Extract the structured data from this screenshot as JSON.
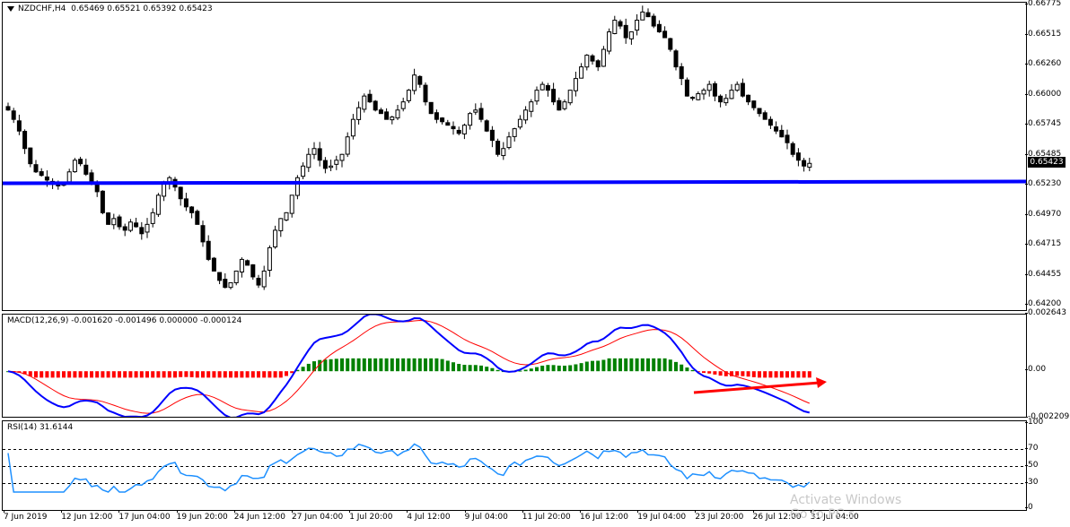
{
  "chart_header": {
    "symbol_label": "NZDCHF,H4",
    "ohlc": "0.65469 0.65521 0.65392 0.65423"
  },
  "price_axis": {
    "ticks": [
      "0.66775",
      "0.66515",
      "0.66260",
      "0.66000",
      "0.65745",
      "0.65485",
      "0.65230",
      "0.64970",
      "0.64715",
      "0.64455",
      "0.64200"
    ],
    "current_price": "0.65423"
  },
  "macd": {
    "label": "MACD(12,26,9) -0.001620 -0.001496 0.000000 -0.000124",
    "axis_ticks": [
      "0.002643",
      "0.00",
      "-0.002209"
    ]
  },
  "rsi": {
    "label": "RSI(14) 31.6144",
    "axis_ticks": [
      "100",
      "70",
      "50",
      "30",
      "0"
    ]
  },
  "time_axis": {
    "labels": [
      "7 Jun 2019",
      "12 Jun 12:00",
      "17 Jun 04:00",
      "19 Jun 20:00",
      "24 Jun 12:00",
      "27 Jun 04:00",
      "1 Jul 20:00",
      "4 Jul 12:00",
      "9 Jul 04:00",
      "11 Jul 20:00",
      "16 Jul 12:00",
      "19 Jul 04:00",
      "23 Jul 20:00",
      "26 Jul 12:00",
      "31 Jul 04:00"
    ]
  },
  "watermark": {
    "line1": "Activate Windows",
    "line2": "Go to PC s"
  },
  "chart_data": [
    {
      "type": "candlestick",
      "title": "NZDCHF,H4",
      "ylim": [
        0.6415,
        0.668
      ],
      "close_path": [
        0.6588,
        0.658,
        0.657,
        0.6555,
        0.6542,
        0.6535,
        0.6532,
        0.6528,
        0.6526,
        0.6523,
        0.6525,
        0.6535,
        0.6545,
        0.6542,
        0.6533,
        0.6525,
        0.6518,
        0.65,
        0.649,
        0.6495,
        0.6488,
        0.6485,
        0.6492,
        0.6488,
        0.6482,
        0.649,
        0.65,
        0.6515,
        0.6525,
        0.653,
        0.6522,
        0.6512,
        0.6505,
        0.65,
        0.649,
        0.6475,
        0.646,
        0.645,
        0.6442,
        0.6436,
        0.644,
        0.645,
        0.646,
        0.6455,
        0.6445,
        0.6438,
        0.645,
        0.647,
        0.6485,
        0.6495,
        0.65,
        0.6515,
        0.653,
        0.654,
        0.655,
        0.6555,
        0.6545,
        0.6538,
        0.654,
        0.6545,
        0.655,
        0.6565,
        0.658,
        0.659,
        0.66,
        0.6595,
        0.6588,
        0.6585,
        0.658,
        0.6582,
        0.6588,
        0.6595,
        0.6605,
        0.6618,
        0.661,
        0.6595,
        0.6585,
        0.658,
        0.6578,
        0.6575,
        0.6572,
        0.6568,
        0.6575,
        0.6585,
        0.6588,
        0.658,
        0.657,
        0.6562,
        0.655,
        0.6555,
        0.6565,
        0.6572,
        0.658,
        0.6588,
        0.6595,
        0.6605,
        0.661,
        0.6605,
        0.6595,
        0.6588,
        0.6595,
        0.6605,
        0.6615,
        0.6625,
        0.6635,
        0.663,
        0.6625,
        0.664,
        0.6655,
        0.6665,
        0.666,
        0.665,
        0.6655,
        0.6665,
        0.6672,
        0.6668,
        0.666,
        0.6655,
        0.665,
        0.664,
        0.6625,
        0.6615,
        0.66,
        0.6598,
        0.6602,
        0.6605,
        0.661,
        0.66,
        0.6595,
        0.6598,
        0.6605,
        0.661,
        0.66,
        0.6595,
        0.659,
        0.6585,
        0.658,
        0.6575,
        0.657,
        0.6565,
        0.656,
        0.655,
        0.6545,
        0.654,
        0.65423
      ]
    },
    {
      "type": "line",
      "title": "horizontal support level",
      "y": 0.6526
    },
    {
      "type": "bar+line",
      "title": "MACD(12,26,9)",
      "ylim": [
        -0.002209,
        0.002643
      ],
      "histogram_note": "colored histogram: red below zero, green above zero",
      "trend_arrow": {
        "from": [
          0.0,
          -0.0009
        ],
        "to": [
          1.0,
          -0.0005
        ],
        "color": "#ff0000"
      }
    },
    {
      "type": "line",
      "title": "RSI(14)",
      "ylim": [
        0,
        100
      ],
      "levels": [
        70,
        50,
        30
      ],
      "last_value": 31.6144
    }
  ]
}
